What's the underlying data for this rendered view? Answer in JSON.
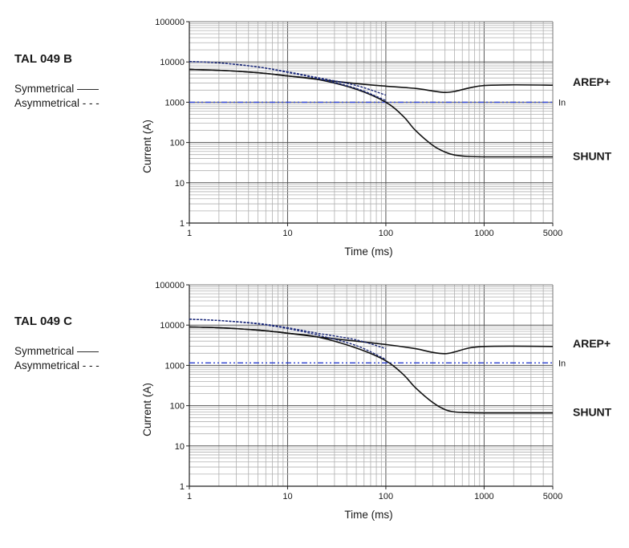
{
  "chart_data": [
    {
      "type": "line",
      "title": "TAL 049 B",
      "legend": {
        "symmetrical": "Symmetrical ——",
        "asymmetrical": "Asymmetrical - - -"
      },
      "xlabel": "Time (ms)",
      "ylabel": "Current (A)",
      "xscale": "log",
      "yscale": "log",
      "xlim": [
        1,
        5000
      ],
      "ylim": [
        1,
        100000
      ],
      "xticks": [
        1,
        10,
        100,
        1000,
        5000
      ],
      "xtick_labels": [
        "1",
        "10",
        "100",
        "1000",
        "5000"
      ],
      "yticks": [
        1,
        10,
        100,
        1000,
        10000,
        100000
      ],
      "ytick_labels": [
        "1",
        "10",
        "100",
        "1000",
        "10000",
        "100000"
      ],
      "in_label": "In",
      "in_value": 1000,
      "series": [
        {
          "name": "AREP+",
          "style": "solid",
          "x": [
            1,
            2,
            5,
            10,
            20,
            50,
            100,
            200,
            300,
            400,
            500,
            700,
            1000,
            2000,
            5000
          ],
          "y": [
            6500,
            6200,
            5400,
            4500,
            3700,
            2900,
            2500,
            2200,
            1900,
            1750,
            1850,
            2250,
            2600,
            2700,
            2650
          ]
        },
        {
          "name": "SHUNT",
          "style": "solid",
          "x": [
            1,
            2,
            5,
            10,
            20,
            50,
            100,
            150,
            200,
            300,
            400,
            500,
            700,
            1000,
            2000,
            5000
          ],
          "y": [
            6500,
            6200,
            5400,
            4500,
            3700,
            2100,
            1000,
            450,
            200,
            85,
            58,
            49,
            45,
            44,
            44,
            44
          ]
        },
        {
          "name": "AREP+ asymmetrical",
          "style": "dashed",
          "x": [
            1,
            2,
            5,
            10,
            20,
            50,
            100
          ],
          "y": [
            10200,
            9500,
            7500,
            5700,
            4100,
            2600,
            1500
          ]
        },
        {
          "name": "SHUNT asymmetrical",
          "style": "dashed",
          "x": [
            1,
            2,
            5,
            10,
            20,
            50,
            100
          ],
          "y": [
            10200,
            9500,
            7500,
            5500,
            3900,
            2200,
            1100
          ]
        }
      ],
      "annotations": [
        "AREP+",
        "SHUNT"
      ]
    },
    {
      "type": "line",
      "title": "TAL 049 C",
      "legend": {
        "symmetrical": "Symmetrical ——",
        "asymmetrical": "Asymmetrical - - -"
      },
      "xlabel": "Time (ms)",
      "ylabel": "Current (A)",
      "xscale": "log",
      "yscale": "log",
      "xlim": [
        1,
        5000
      ],
      "ylim": [
        1,
        100000
      ],
      "xticks": [
        1,
        10,
        100,
        1000,
        5000
      ],
      "xtick_labels": [
        "1",
        "10",
        "100",
        "1000",
        "5000"
      ],
      "yticks": [
        1,
        10,
        100,
        1000,
        10000,
        100000
      ],
      "ytick_labels": [
        "1",
        "10",
        "100",
        "1000",
        "10000",
        "100000"
      ],
      "in_label": "In",
      "in_value": 1150,
      "series": [
        {
          "name": "AREP+",
          "style": "solid",
          "x": [
            1,
            2,
            5,
            10,
            20,
            50,
            100,
            200,
            300,
            400,
            500,
            700,
            1000,
            2000,
            5000
          ],
          "y": [
            9000,
            8600,
            7500,
            6300,
            5100,
            4000,
            3300,
            2600,
            2100,
            1950,
            2150,
            2700,
            2950,
            3000,
            2950
          ]
        },
        {
          "name": "SHUNT",
          "style": "solid",
          "x": [
            1,
            2,
            5,
            10,
            20,
            50,
            100,
            150,
            200,
            300,
            400,
            500,
            700,
            1000,
            2000,
            5000
          ],
          "y": [
            9000,
            8600,
            7500,
            6300,
            5100,
            2700,
            1300,
            600,
            280,
            120,
            80,
            70,
            67,
            66,
            66,
            66
          ]
        },
        {
          "name": "AREP+ asymmetrical",
          "style": "dashed",
          "x": [
            1,
            2,
            5,
            10,
            20,
            50,
            100
          ],
          "y": [
            14000,
            13000,
            11000,
            8600,
            6300,
            4300,
            2600
          ]
        },
        {
          "name": "SHUNT asymmetrical",
          "style": "dashed",
          "x": [
            1,
            2,
            5,
            10,
            20,
            50,
            100
          ],
          "y": [
            14000,
            13000,
            10700,
            8200,
            5700,
            3100,
            1400
          ]
        }
      ],
      "annotations": [
        "AREP+",
        "SHUNT"
      ]
    }
  ]
}
